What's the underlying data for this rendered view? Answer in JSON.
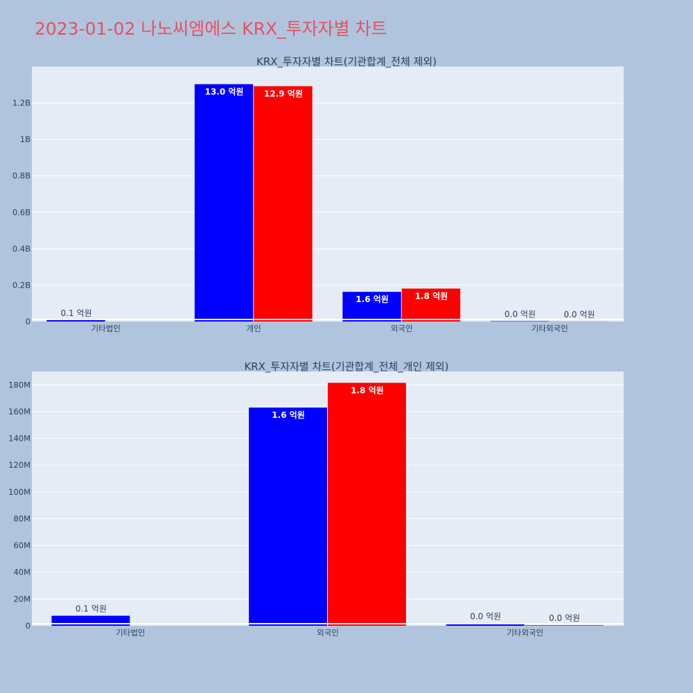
{
  "page": {
    "title": "2023-01-02 나노씨엠에스 KRX_투자자별 차트"
  },
  "colors": {
    "series_a": "#0000ff",
    "series_b": "#ff0000",
    "background": "#b0c4de",
    "plot_bg": "#e5ecf6"
  },
  "chart_data": [
    {
      "type": "bar",
      "title": "KRX_투자자별 차트(기관합계_전체 제외)",
      "categories": [
        "기타법인",
        "개인",
        "외국인",
        "기타외국인"
      ],
      "ylim": [
        0,
        1400000000
      ],
      "yticks": [
        0,
        200000000,
        400000000,
        600000000,
        800000000,
        1000000000,
        1200000000
      ],
      "ytick_labels": [
        "0",
        "0.2B",
        "0.4B",
        "0.6B",
        "0.8B",
        "1B",
        "1.2B"
      ],
      "grid": true,
      "series": [
        {
          "color": "#0000ff",
          "values": [
            8000000,
            1303000000,
            163000000,
            2000000
          ],
          "labels": [
            "0.1 억원",
            "13.0 억원",
            "1.6 억원",
            "0.0 억원"
          ]
        },
        {
          "color": "#ff0000",
          "values": [
            0,
            1292000000,
            181000000,
            500000
          ],
          "labels": [
            "",
            "12.9 억원",
            "1.8 억원",
            "0.0 억원"
          ]
        }
      ]
    },
    {
      "type": "bar",
      "title": "KRX_투자자별 차트(기관합계_전체_개인 제외)",
      "categories": [
        "기타법인",
        "외국인",
        "기타외국인"
      ],
      "ylim": [
        0,
        190000000
      ],
      "yticks": [
        0,
        20000000,
        40000000,
        60000000,
        80000000,
        100000000,
        120000000,
        140000000,
        160000000,
        180000000
      ],
      "ytick_labels": [
        "0",
        "20M",
        "40M",
        "60M",
        "80M",
        "100M",
        "120M",
        "140M",
        "160M",
        "180M"
      ],
      "grid": true,
      "series": [
        {
          "color": "#0000ff",
          "values": [
            7500000,
            163000000,
            1800000
          ],
          "labels": [
            "0.1 억원",
            "1.6 억원",
            "0.0 억원"
          ]
        },
        {
          "color": "#ff0000",
          "values": [
            0,
            181500000,
            400000
          ],
          "labels": [
            "",
            "1.8 억원",
            "0.0 억원"
          ]
        }
      ]
    }
  ]
}
